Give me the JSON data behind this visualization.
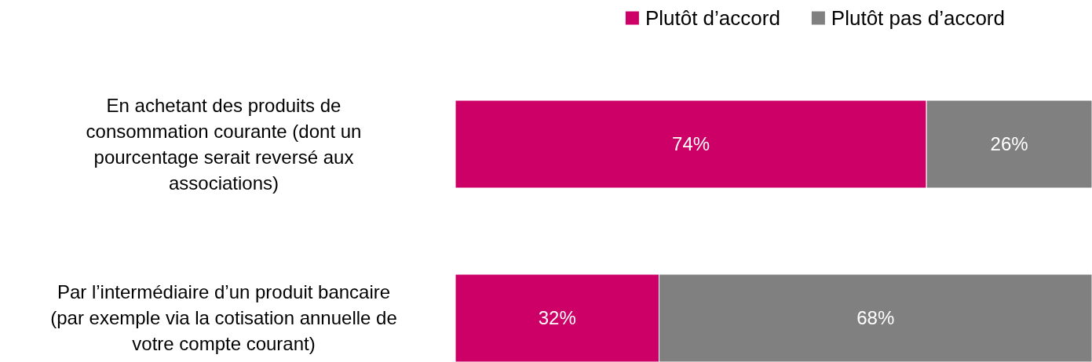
{
  "chart_data": {
    "type": "bar",
    "orientation": "horizontal",
    "stacked": true,
    "categories": [
      "En achetant des produits de consommation courante (dont un pourcentage serait reversé aux associations)",
      "Par l’intermédiaire d’un produit bancaire (par exemple via la cotisation annuelle de votre compte courant)"
    ],
    "series": [
      {
        "name": "Plutôt d’accord",
        "color": "#cc0066",
        "values": [
          74,
          32
        ],
        "value_labels": [
          "74%",
          "32%"
        ]
      },
      {
        "name": "Plutôt pas d’accord",
        "color": "#808080",
        "values": [
          26,
          68
        ],
        "value_labels": [
          "26%",
          "68%"
        ]
      }
    ],
    "xlim": [
      0,
      100
    ],
    "tick_labels": "y",
    "legend": "top right"
  }
}
